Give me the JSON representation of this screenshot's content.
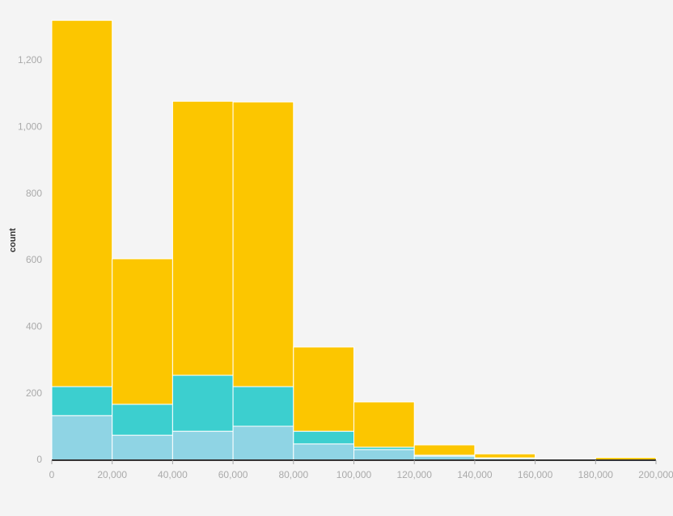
{
  "chart_data": {
    "type": "histogram",
    "y_label": "count",
    "bins": [
      0,
      20000,
      40000,
      60000,
      80000,
      100000,
      120000,
      140000,
      160000,
      180000,
      200000
    ],
    "series": [
      {
        "color": "#8fd4e4",
        "values": [
          134,
          75,
          87,
          102,
          49,
          32,
          12,
          5,
          0,
          0
        ]
      },
      {
        "color": "#3ccfcf",
        "values": [
          87,
          93,
          168,
          119,
          38,
          7,
          3,
          2,
          0,
          0
        ]
      },
      {
        "color": "#fcc600",
        "values": [
          1100,
          437,
          823,
          855,
          253,
          136,
          31,
          12,
          0,
          8
        ]
      }
    ],
    "xlim": [
      0,
      200000
    ],
    "ylim": [
      0,
      1330
    ],
    "xticks": [
      0,
      {
        "value": 20000,
        "label": "20,000"
      },
      {
        "value": 40000,
        "label": "40,000"
      },
      {
        "value": 60000,
        "label": "60,000"
      },
      {
        "value": 80000,
        "label": "80,000"
      },
      {
        "value": 100000,
        "label": "100,000"
      },
      {
        "value": 120000,
        "label": "120,000"
      },
      {
        "value": 140000,
        "label": "140,000"
      },
      {
        "value": 160000,
        "label": "160,000"
      },
      {
        "value": 180000,
        "label": "180,000"
      },
      {
        "value": 200000,
        "label": "200,000"
      }
    ],
    "yticks": [
      0,
      200,
      400,
      600,
      800,
      {
        "value": 1000,
        "label": "1,000"
      },
      {
        "value": 1200,
        "label": "1,200"
      }
    ]
  }
}
